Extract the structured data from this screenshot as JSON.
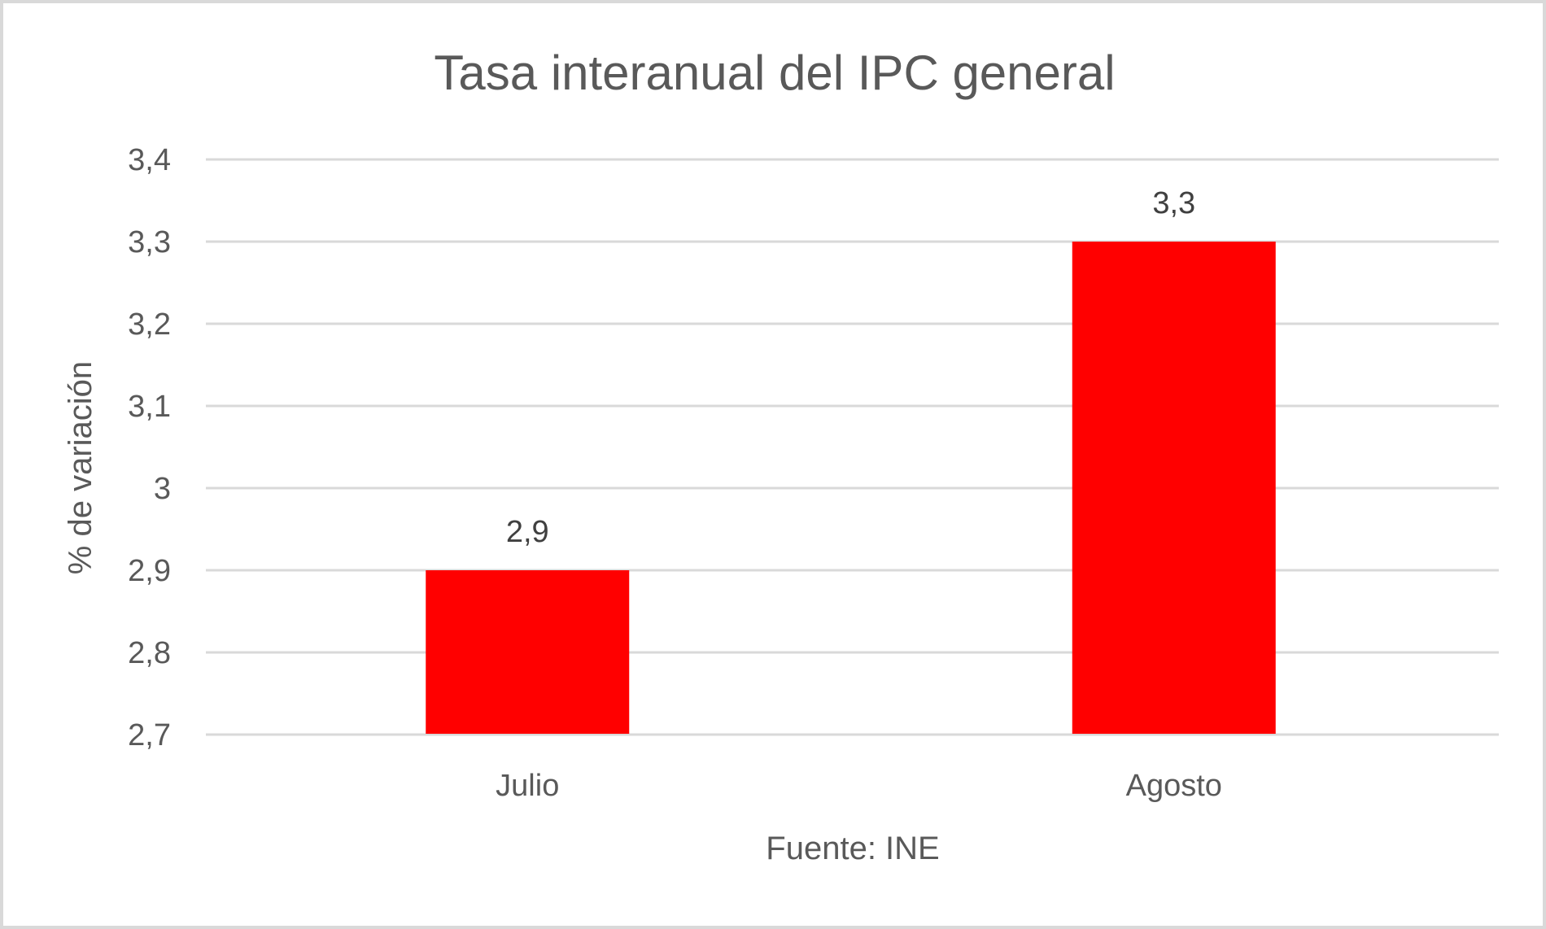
{
  "chart_data": {
    "type": "bar",
    "title": "Tasa interanual del IPC general",
    "xlabel": "Fuente: INE",
    "ylabel": "% de variación",
    "categories": [
      "Julio",
      "Agosto"
    ],
    "values": [
      2.9,
      3.3
    ],
    "data_labels": [
      "2,9",
      "3,3"
    ],
    "ylim": [
      2.7,
      3.4
    ],
    "yticks": [
      2.7,
      2.8,
      2.9,
      3.0,
      3.1,
      3.2,
      3.3,
      3.4
    ],
    "ytick_labels": [
      "2,7",
      "2,8",
      "2,9",
      "3",
      "3,1",
      "3,2",
      "3,3",
      "3,4"
    ],
    "grid": true,
    "legend": "none",
    "colors": {
      "bar": "#ff0000",
      "grid": "#d9d9d9",
      "text": "#595959",
      "border": "#d9d9d9"
    }
  }
}
